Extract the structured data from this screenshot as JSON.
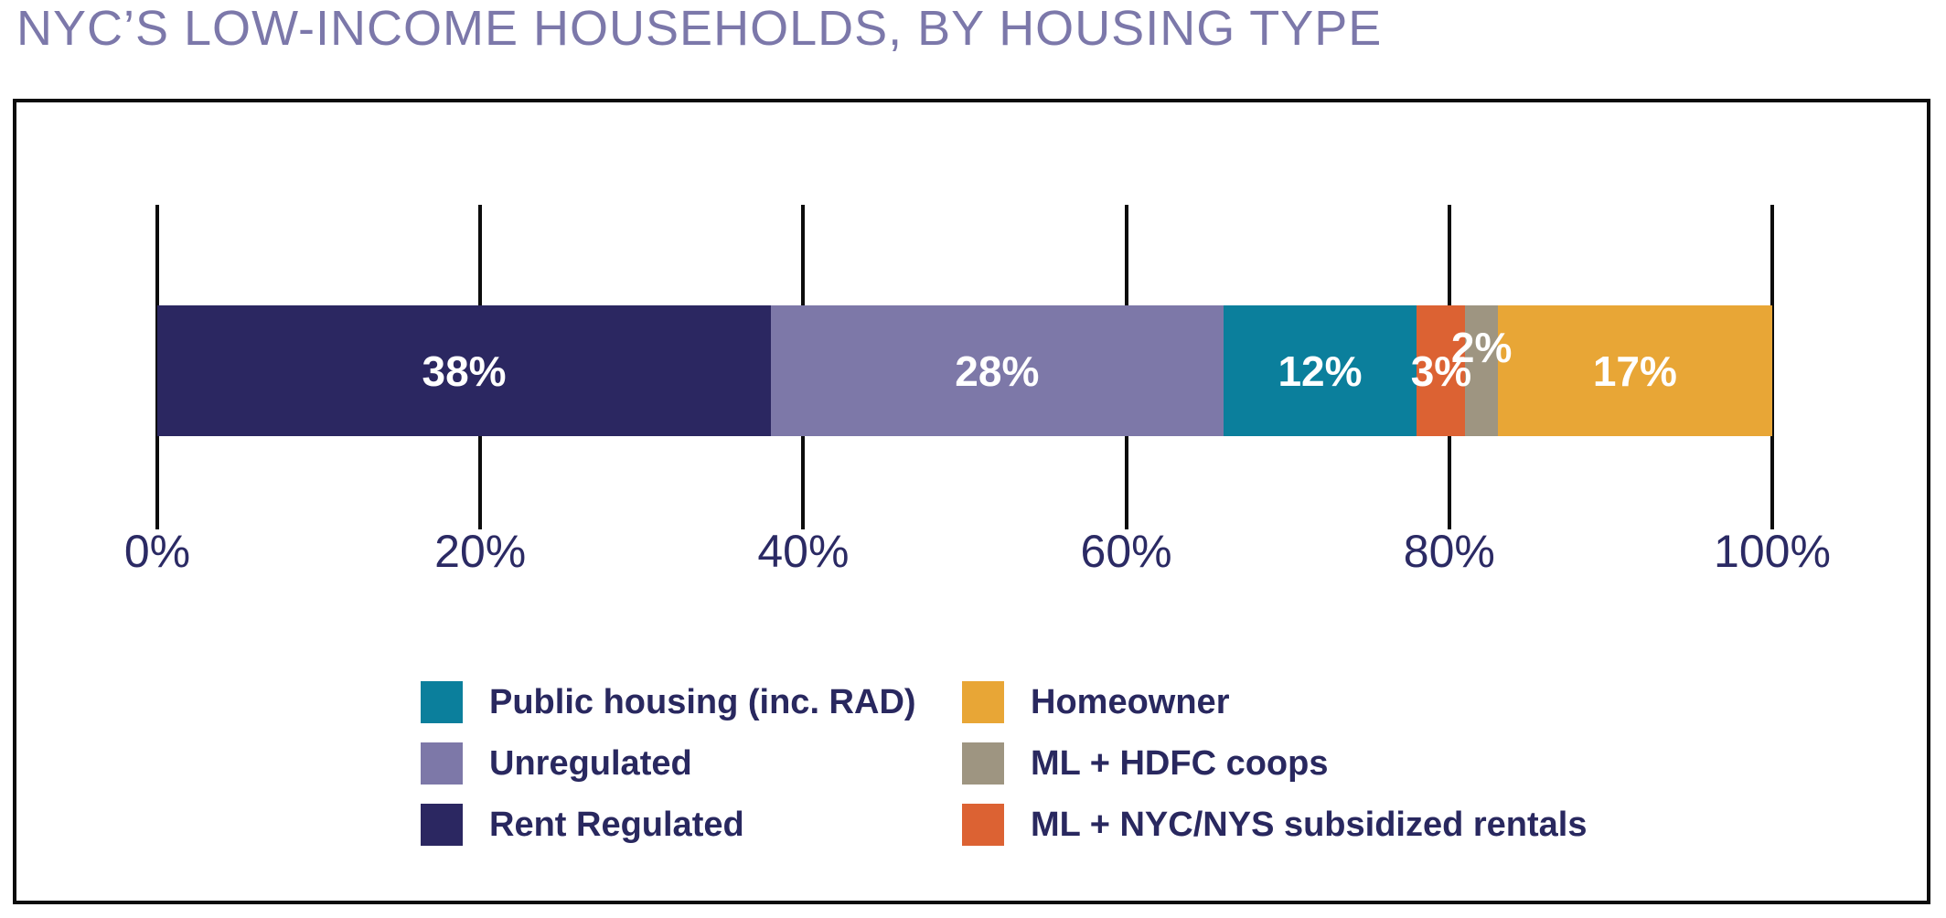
{
  "title": "NYC’S LOW-INCOME HOUSEHOLDS, BY HOUSING TYPE",
  "colors": {
    "background": "#ffffff",
    "title_text": "#7c78aa",
    "axis_text": "#2b2a64",
    "legend_text": "#29285f",
    "line": "#0c0c0c",
    "bar_label_text": "#ffffff"
  },
  "chart_data": {
    "type": "bar",
    "variant": "stacked-horizontal",
    "title": "NYC’S LOW-INCOME HOUSEHOLDS, BY HOUSING TYPE",
    "unit": "percent",
    "xlim": [
      0,
      100
    ],
    "x_ticks": [
      0,
      20,
      40,
      60,
      80,
      100
    ],
    "x_tick_labels": [
      "0%",
      "20%",
      "40%",
      "60%",
      "80%",
      "100%"
    ],
    "grid": false,
    "segments": [
      {
        "name": "Rent Regulated",
        "value": 38,
        "label": "38%",
        "color": "#2b2761",
        "label_offset_y": 0
      },
      {
        "name": "Unregulated",
        "value": 28,
        "label": "28%",
        "color": "#7d78a8",
        "label_offset_y": 0
      },
      {
        "name": "Public housing (inc. RAD)",
        "value": 12,
        "label": "12%",
        "color": "#0b7f9c",
        "label_offset_y": 0
      },
      {
        "name": "ML + NYC/NYS subsidized rentals",
        "value": 3,
        "label": "3%",
        "color": "#dc6233",
        "label_offset_y": 0
      },
      {
        "name": "ML + HDFC coops",
        "value": 2,
        "label": "2%",
        "color": "#9e9581",
        "label_offset_y": -26
      },
      {
        "name": "Homeowner",
        "value": 17,
        "label": "17%",
        "color": "#e8a636",
        "label_offset_y": 0
      }
    ],
    "legend_position": "bottom",
    "legend_columns": [
      [
        {
          "label": "Public housing (inc. RAD)",
          "color": "#0b7f9c"
        },
        {
          "label": "Unregulated",
          "color": "#7d78a8"
        },
        {
          "label": "Rent Regulated",
          "color": "#2b2761"
        }
      ],
      [
        {
          "label": "Homeowner",
          "color": "#e8a636"
        },
        {
          "label": "ML + HDFC coops",
          "color": "#9e9581"
        },
        {
          "label": "ML + NYC/NYS subsidized rentals",
          "color": "#dc6233"
        }
      ]
    ]
  }
}
